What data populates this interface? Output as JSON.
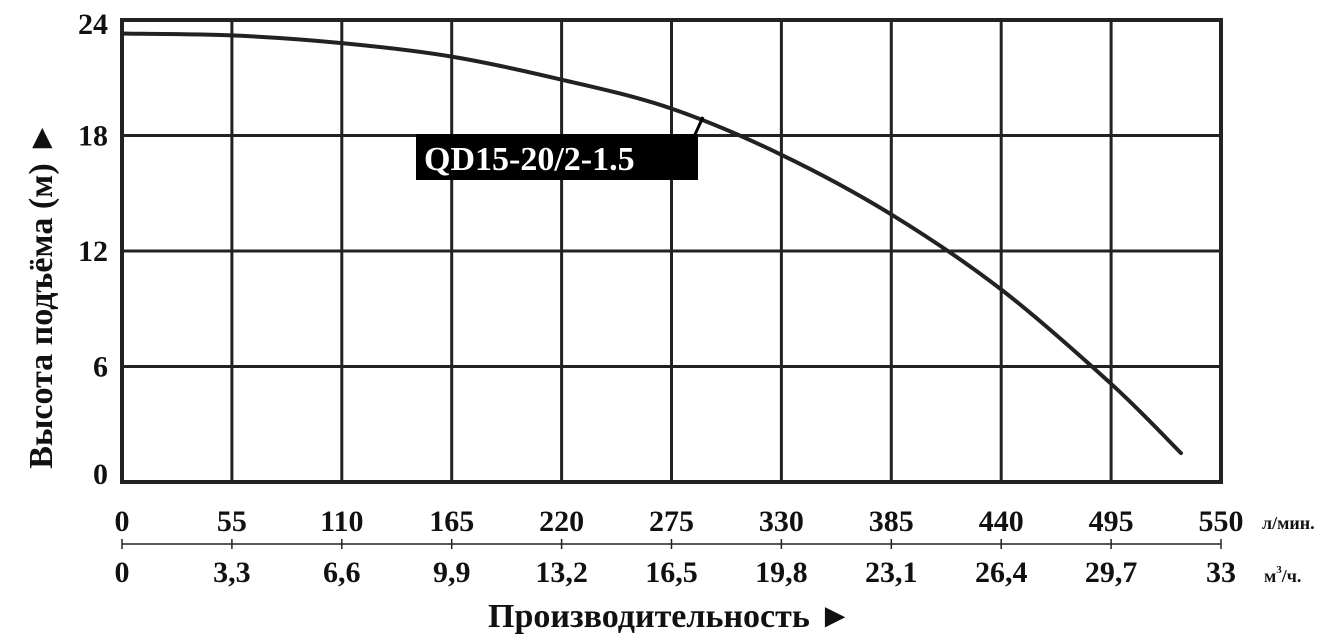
{
  "chart_data": {
    "type": "line",
    "ylabel": "Высота подъёма (м) ►",
    "xlabel": "Производительность ►",
    "x_unit_primary": "л/мин.",
    "x_unit_secondary_base": "м",
    "x_unit_secondary_sup": "3",
    "x_unit_secondary_tail": "/ч.",
    "xlim": [
      0,
      550
    ],
    "ylim": [
      0,
      24
    ],
    "x_ticks_primary": [
      "0",
      "55",
      "110",
      "165",
      "220",
      "275",
      "330",
      "385",
      "440",
      "495",
      "550"
    ],
    "x_ticks_secondary": [
      "0",
      "3,3",
      "6,6",
      "9,9",
      "13,2",
      "16,5",
      "19,8",
      "23,1",
      "26,4",
      "29,7",
      "33"
    ],
    "y_ticks": [
      "0",
      "6",
      "12",
      "18",
      "24"
    ],
    "grid": true,
    "series": [
      {
        "name": "QD15-20/2-1.5",
        "x": [
          0,
          55,
          110,
          165,
          220,
          275,
          330,
          385,
          440,
          495,
          530
        ],
        "y": [
          23.3,
          23.2,
          22.8,
          22.1,
          20.9,
          19.4,
          17.0,
          13.9,
          10.0,
          5.1,
          1.5
        ]
      }
    ],
    "colors": {
      "line": "#222222",
      "grid": "#222222",
      "label_bg": "#000000",
      "label_text": "#ffffff"
    }
  }
}
